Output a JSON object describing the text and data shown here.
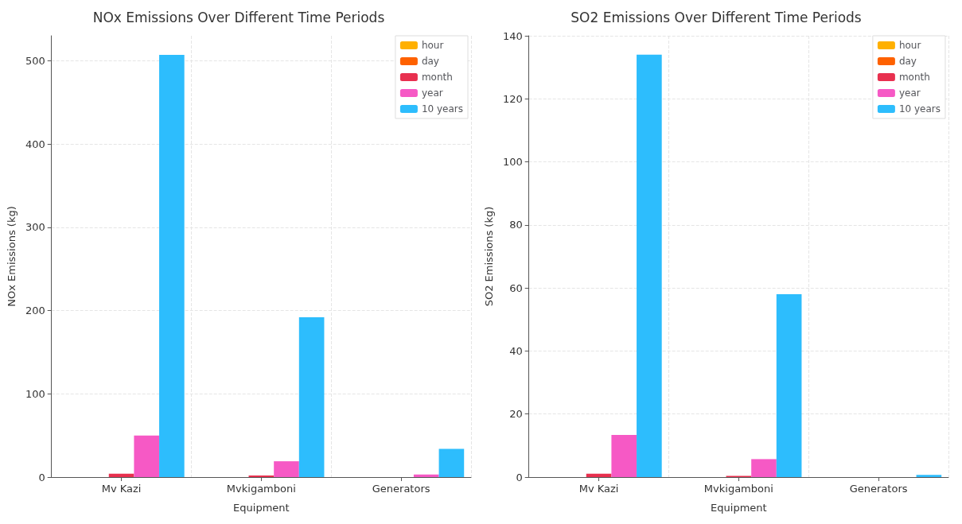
{
  "chart_data": [
    {
      "type": "bar",
      "title": "NOx Emissions Over Different Time Periods",
      "xlabel": "Equipment",
      "ylabel": "NOx Emissions (kg)",
      "categories": [
        "Mv Kazi",
        "Mvkigamboni",
        "Generators"
      ],
      "series": [
        {
          "name": "hour",
          "color": "#ffb000",
          "values": [
            0,
            0,
            0
          ]
        },
        {
          "name": "day",
          "color": "#fe6100",
          "values": [
            0,
            0,
            0
          ]
        },
        {
          "name": "month",
          "color": "#e8304f",
          "values": [
            4,
            2,
            0
          ]
        },
        {
          "name": "year",
          "color": "#f659c5",
          "values": [
            50,
            19,
            3
          ]
        },
        {
          "name": "10 years",
          "color": "#2dbdfd",
          "values": [
            507,
            192,
            34
          ]
        }
      ],
      "ylim": [
        0,
        530
      ],
      "yticks": [
        0,
        100,
        200,
        300,
        400,
        500
      ],
      "grid": true,
      "legend": "top right"
    },
    {
      "type": "bar",
      "title": "SO2 Emissions Over Different Time Periods",
      "xlabel": "Equipment",
      "ylabel": "SO2 Emissions (kg)",
      "categories": [
        "Mv Kazi",
        "Mvkigamboni",
        "Generators"
      ],
      "series": [
        {
          "name": "hour",
          "color": "#ffb000",
          "values": [
            0,
            0,
            0
          ]
        },
        {
          "name": "day",
          "color": "#fe6100",
          "values": [
            0,
            0,
            0
          ]
        },
        {
          "name": "month",
          "color": "#e8304f",
          "values": [
            1.1,
            0.4,
            0
          ]
        },
        {
          "name": "year",
          "color": "#f659c5",
          "values": [
            13.4,
            5.7,
            0
          ]
        },
        {
          "name": "10 years",
          "color": "#2dbdfd",
          "values": [
            134,
            58,
            0.7
          ]
        }
      ],
      "ylim": [
        0,
        140
      ],
      "yticks": [
        0,
        20,
        40,
        60,
        80,
        100,
        120,
        140
      ],
      "grid": true,
      "legend": "top right"
    }
  ]
}
